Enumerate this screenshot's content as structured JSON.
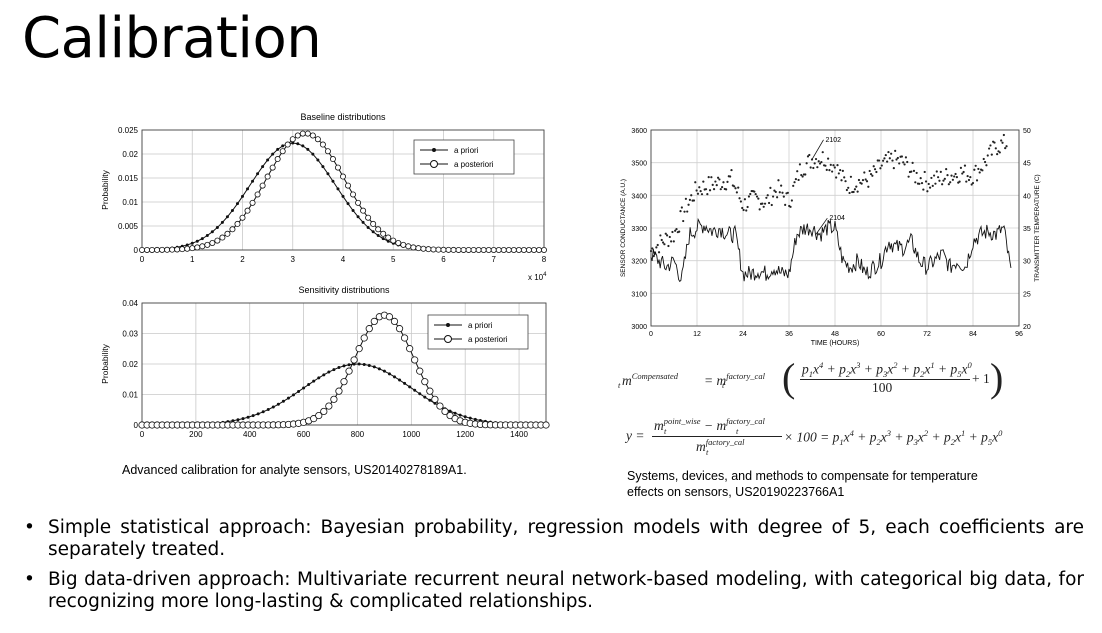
{
  "slide": {
    "title": "Calibration"
  },
  "chart_data": [
    {
      "type": "line",
      "title": "Baseline distributions",
      "xlabel": "",
      "ylabel": "Probability",
      "x_multiplier": "x 10^4",
      "xlim": [
        0,
        8
      ],
      "ylim": [
        0,
        0.025
      ],
      "xticks": [
        "0",
        "1",
        "2",
        "3",
        "4",
        "5",
        "6",
        "7",
        "8"
      ],
      "yticks": [
        "0",
        "0.005",
        "0.01",
        "0.015",
        "0.02",
        "0.025"
      ],
      "grid": true,
      "legend_position": "top-right",
      "series": [
        {
          "name": "a priori",
          "marker": "filled-dot",
          "distribution": "normal",
          "mean": 3.0,
          "sd": 0.85,
          "peak": 0.0223
        },
        {
          "name": "a posteriori",
          "marker": "open-circle",
          "distribution": "normal",
          "mean": 3.25,
          "sd": 0.78,
          "peak": 0.0243
        }
      ]
    },
    {
      "type": "line",
      "title": "Sensitivity distributions",
      "xlabel": "",
      "ylabel": "Probability",
      "xlim": [
        0,
        1500
      ],
      "ylim": [
        0,
        0.04
      ],
      "xticks": [
        "0",
        "200",
        "400",
        "600",
        "800",
        "1000",
        "1200",
        "1400"
      ],
      "yticks": [
        "0",
        "0.01",
        "0.02",
        "0.03",
        "0.04"
      ],
      "grid": true,
      "legend_position": "top-right",
      "series": [
        {
          "name": "a priori",
          "marker": "filled-dot",
          "distribution": "normal",
          "mean": 800,
          "sd": 200,
          "peak": 0.02
        },
        {
          "name": "a posteriori",
          "marker": "open-circle",
          "distribution": "normal",
          "mean": 900,
          "sd": 110,
          "peak": 0.036
        }
      ]
    },
    {
      "type": "scatter",
      "title": "",
      "xlabel": "TIME (HOURS)",
      "ylabel": "SENSOR CONDUCTANCE (A.U.)",
      "ylabel_right": "TRANSMITTER TEMPERATURE (C)",
      "xlim": [
        0,
        96
      ],
      "ylim": [
        3000,
        3600
      ],
      "ylim_right": [
        20,
        50
      ],
      "xticks": [
        "0",
        "12",
        "24",
        "36",
        "48",
        "60",
        "72",
        "84",
        "96"
      ],
      "yticks": [
        "3000",
        "3100",
        "3200",
        "3300",
        "3400",
        "3500",
        "3600"
      ],
      "yticks_right": [
        "20",
        "25",
        "30",
        "35",
        "40",
        "45",
        "50"
      ],
      "grid": true,
      "annotations": [
        "2102",
        "2104"
      ],
      "series": [
        {
          "name": "sensor conductance",
          "marker": "dot",
          "x": [
            0,
            3,
            6,
            9,
            12,
            15,
            18,
            21,
            24,
            27,
            30,
            33,
            36,
            39,
            42,
            45,
            48,
            51,
            54,
            57,
            60,
            63,
            66,
            69,
            72,
            75,
            78,
            81,
            84,
            87,
            90,
            93
          ],
          "values": [
            3230,
            3260,
            3280,
            3360,
            3420,
            3430,
            3440,
            3450,
            3370,
            3390,
            3380,
            3420,
            3380,
            3480,
            3510,
            3515,
            3490,
            3430,
            3440,
            3450,
            3490,
            3510,
            3500,
            3460,
            3440,
            3450,
            3460,
            3470,
            3460,
            3500,
            3550,
            3560
          ]
        },
        {
          "name": "transmitter temperature",
          "marker": "line",
          "x": [
            0,
            2,
            4,
            6,
            8,
            10,
            12,
            14,
            16,
            18,
            20,
            22,
            24,
            26,
            28,
            30,
            32,
            34,
            36,
            38,
            40,
            42,
            44,
            46,
            48,
            50,
            52,
            54,
            56,
            58,
            60,
            62,
            64,
            66,
            68,
            70,
            72,
            74,
            76,
            78,
            80,
            82,
            84,
            86,
            88,
            90,
            92,
            94
          ],
          "values": [
            31,
            30,
            29,
            30,
            27,
            34,
            35,
            35.5,
            34.5,
            35,
            34,
            34,
            28,
            28,
            28.5,
            28,
            29,
            28,
            28,
            34,
            35,
            35,
            34,
            35,
            35,
            30,
            29,
            30,
            28,
            29,
            30,
            33,
            32,
            32,
            33,
            30,
            29,
            30,
            31,
            29,
            30,
            29,
            33,
            34,
            34.5,
            34,
            35,
            28
          ]
        }
      ]
    }
  ],
  "captions": {
    "left": "Advanced calibration for analyte sensors, US20140278189A1.",
    "right_line1": "Systems, devices, and methods to compensate for temperature",
    "right_line2": "effects on sensors, US20190223766A1"
  },
  "equations": {
    "eq1_lhs_base": "m",
    "eq1_lhs_sup": "Compensated",
    "eq1_lhs_sub": "t",
    "eq1_eq_m": "= m",
    "eq1_rhs_sup": "factory_cal",
    "eq1_rhs_sub": "t",
    "eq1_numerator": "p1x4 + p2x3 + p3x2 + p2x1 + p5x0",
    "eq1_denominator": "100",
    "eq1_tail": "+ 1",
    "eq2_lhs": "y =",
    "eq2_num_a": "m",
    "eq2_num_a_sup": "point_wise",
    "eq2_num_a_sub": "t",
    "eq2_minus": "− m",
    "eq2_num_b_sup": "factory_cal",
    "eq2_num_b_sub": "t",
    "eq2_den": "m",
    "eq2_den_sup": "factory_cal",
    "eq2_den_sub": "t",
    "eq2_rhs": "× 100 = p1x4 + p2x3 + p3x2 + p2x1 + p5x0"
  },
  "bullets": [
    "Simple statistical approach: Bayesian probability, regression models with degree of 5, each coefficients are separately treated.",
    "Big data-driven approach: Multivariate recurrent neural network-based modeling, with categorical big data, for recognizing more long-lasting & complicated relationships."
  ]
}
